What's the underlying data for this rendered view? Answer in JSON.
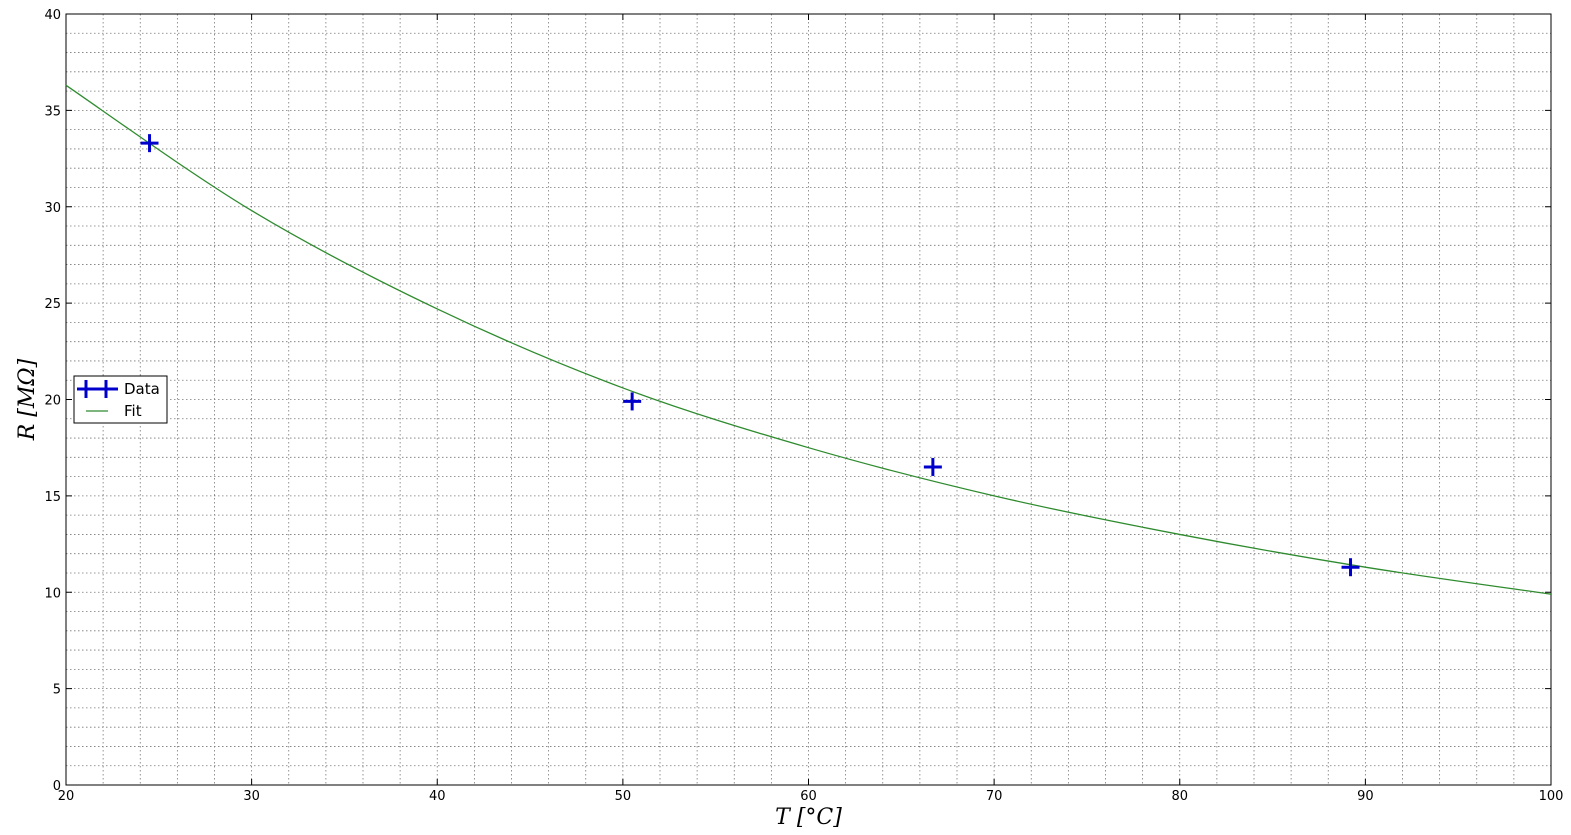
{
  "chart_data": {
    "type": "scatter",
    "title": "",
    "xlabel": "T [°C]",
    "ylabel": "R [MΩ]",
    "xlim": [
      20,
      100
    ],
    "ylim": [
      0,
      40
    ],
    "x_ticks": [
      20,
      30,
      40,
      50,
      60,
      70,
      80,
      90,
      100
    ],
    "y_ticks": [
      0,
      5,
      10,
      15,
      20,
      25,
      30,
      35,
      40
    ],
    "grid": true,
    "legend": "center-left",
    "series": [
      {
        "name": "Data",
        "style": "plus-markers",
        "color": "#0000cc",
        "x": [
          24.5,
          50.5,
          66.7,
          89.2
        ],
        "y": [
          33.3,
          19.9,
          16.5,
          11.3
        ]
      },
      {
        "name": "Fit",
        "style": "line",
        "color": "#2e8b2e",
        "x": [
          20,
          30,
          40,
          50,
          60,
          70,
          80,
          90,
          100
        ],
        "y": [
          36.3,
          29.8,
          24.7,
          20.6,
          17.5,
          15.0,
          13.0,
          11.3,
          9.9
        ]
      }
    ]
  }
}
